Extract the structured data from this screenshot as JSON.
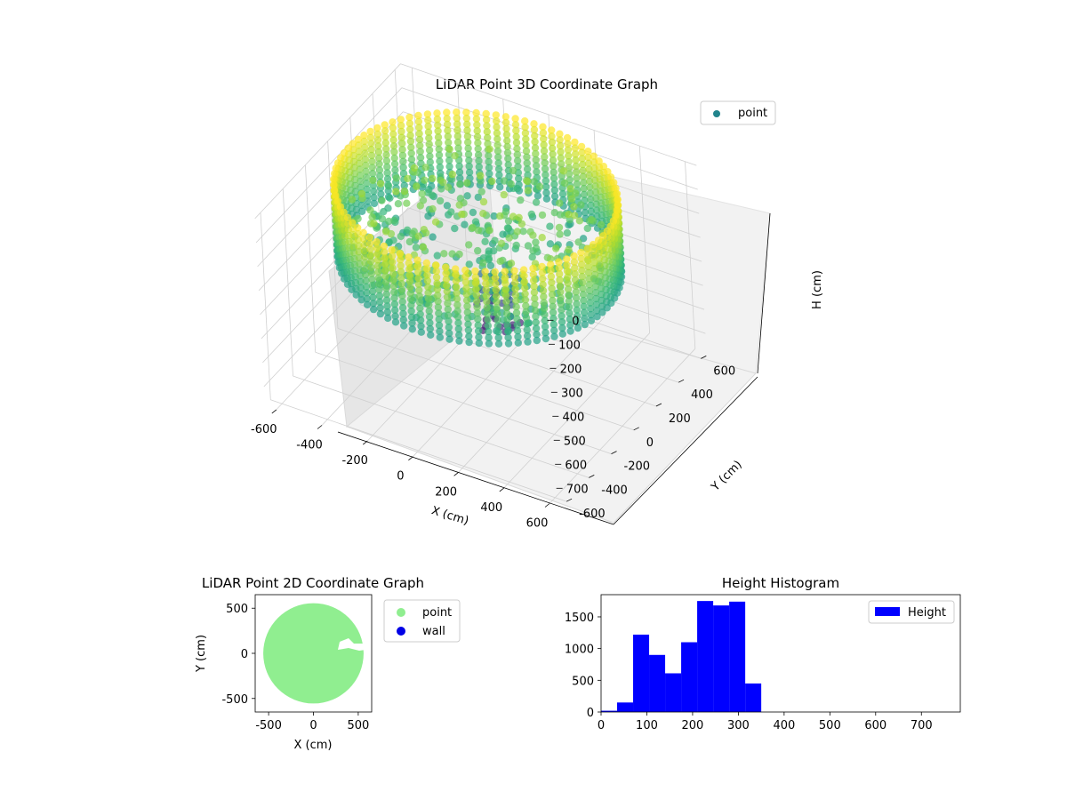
{
  "chart_data": [
    {
      "type": "scatter",
      "subtype": "3d",
      "title": "LiDAR Point 3D Coordinate Graph",
      "xlabel": "X (cm)",
      "ylabel": "Y (cm)",
      "zlabel": "H (cm)",
      "xticks": [
        -600,
        -400,
        -200,
        0,
        200,
        400,
        600
      ],
      "yticks": [
        -600,
        -400,
        -200,
        0,
        200,
        400,
        600
      ],
      "zticks": [
        0,
        100,
        200,
        300,
        400,
        500,
        600,
        700
      ],
      "xlim": [
        -650,
        650
      ],
      "ylim": [
        -650,
        650
      ],
      "zlim": [
        780,
        0
      ],
      "z_inverted": true,
      "colormap": "viridis",
      "legend": {
        "position": "upper-right",
        "entries": [
          {
            "label": "point",
            "color": "#21848c"
          }
        ]
      },
      "wall_radius": 560,
      "wall_height_range": [
        0,
        300
      ],
      "grid": true
    },
    {
      "type": "scatter",
      "title": "LiDAR Point 2D Coordinate Graph",
      "xlabel": "X (cm)",
      "ylabel": "Y (cm)",
      "xticks": [
        -500,
        0,
        500
      ],
      "yticks": [
        -500,
        0,
        500
      ],
      "xlim": [
        -650,
        650
      ],
      "ylim": [
        -650,
        650
      ],
      "series": [
        {
          "name": "point",
          "color": "#90ee90",
          "region": "disk",
          "radius": 560,
          "center": [
            0,
            0
          ]
        },
        {
          "name": "wall",
          "color": "#0000e6"
        }
      ],
      "legend": {
        "position": "outside-right",
        "entries": [
          {
            "label": "point",
            "color": "#90ee90"
          },
          {
            "label": "wall",
            "color": "#0000e6"
          }
        ]
      }
    },
    {
      "type": "bar",
      "subtype": "histogram",
      "title": "Height Histogram",
      "bin_edges": [
        0,
        35,
        70,
        105,
        140,
        175,
        210,
        245,
        280,
        315,
        350,
        385,
        420,
        455,
        490,
        525,
        560,
        595,
        630,
        665,
        700,
        735,
        780
      ],
      "values": [
        20,
        150,
        1220,
        900,
        610,
        1100,
        1750,
        1680,
        1740,
        450,
        0,
        0,
        0,
        0,
        0,
        0,
        0,
        0,
        0,
        0,
        0,
        0
      ],
      "color": "#0000ff",
      "xticks": [
        0,
        100,
        200,
        300,
        400,
        500,
        600,
        700
      ],
      "yticks": [
        0,
        500,
        1000,
        1500
      ],
      "xlim": [
        0,
        785
      ],
      "ylim": [
        0,
        1850
      ],
      "legend": {
        "position": "upper-right",
        "entries": [
          {
            "label": "Height",
            "color": "#0000ff"
          }
        ]
      }
    }
  ]
}
